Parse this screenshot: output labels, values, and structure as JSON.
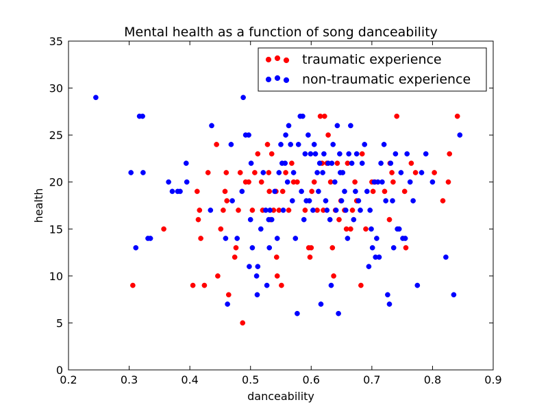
{
  "chart_data": {
    "type": "scatter",
    "title": "Mental health as a function of song danceability",
    "xlabel": "danceability",
    "ylabel": "health",
    "xlim": [
      0.2,
      0.9
    ],
    "ylim": [
      0,
      35
    ],
    "xticks": [
      "0.2",
      "0.3",
      "0.4",
      "0.5",
      "0.6",
      "0.7",
      "0.8",
      "0.9"
    ],
    "yticks": [
      "0",
      "5",
      "10",
      "15",
      "20",
      "25",
      "30",
      "35"
    ],
    "grid": false,
    "legend_position": "top-right",
    "series": [
      {
        "name": "traumatic experience",
        "color": "#ff0000",
        "points": [
          [
            0.306,
            9
          ],
          [
            0.357,
            15
          ],
          [
            0.405,
            9
          ],
          [
            0.412,
            19
          ],
          [
            0.414,
            16
          ],
          [
            0.416,
            17
          ],
          [
            0.418,
            14
          ],
          [
            0.424,
            9
          ],
          [
            0.43,
            21
          ],
          [
            0.444,
            24
          ],
          [
            0.446,
            10
          ],
          [
            0.451,
            15
          ],
          [
            0.455,
            17
          ],
          [
            0.458,
            19
          ],
          [
            0.46,
            21
          ],
          [
            0.461,
            18
          ],
          [
            0.464,
            8
          ],
          [
            0.474,
            12
          ],
          [
            0.476,
            13
          ],
          [
            0.48,
            17
          ],
          [
            0.483,
            21
          ],
          [
            0.487,
            5
          ],
          [
            0.492,
            20
          ],
          [
            0.497,
            20
          ],
          [
            0.503,
            17
          ],
          [
            0.507,
            21
          ],
          [
            0.512,
            23
          ],
          [
            0.518,
            20
          ],
          [
            0.52,
            17
          ],
          [
            0.528,
            24
          ],
          [
            0.53,
            21
          ],
          [
            0.531,
            19
          ],
          [
            0.533,
            16
          ],
          [
            0.535,
            23
          ],
          [
            0.538,
            17
          ],
          [
            0.542,
            19
          ],
          [
            0.543,
            12
          ],
          [
            0.544,
            10
          ],
          [
            0.547,
            17
          ],
          [
            0.551,
            9
          ],
          [
            0.553,
            19
          ],
          [
            0.558,
            21
          ],
          [
            0.563,
            17
          ],
          [
            0.568,
            22
          ],
          [
            0.571,
            20
          ],
          [
            0.577,
            20
          ],
          [
            0.59,
            17
          ],
          [
            0.596,
            13
          ],
          [
            0.598,
            12
          ],
          [
            0.6,
            13
          ],
          [
            0.601,
            19
          ],
          [
            0.605,
            20
          ],
          [
            0.61,
            17
          ],
          [
            0.615,
            27
          ],
          [
            0.618,
            22
          ],
          [
            0.62,
            17
          ],
          [
            0.622,
            27
          ],
          [
            0.626,
            22
          ],
          [
            0.628,
            25
          ],
          [
            0.632,
            20
          ],
          [
            0.635,
            13
          ],
          [
            0.637,
            10
          ],
          [
            0.64,
            17
          ],
          [
            0.643,
            22
          ],
          [
            0.646,
            16
          ],
          [
            0.649,
            18
          ],
          [
            0.655,
            17
          ],
          [
            0.658,
            15
          ],
          [
            0.66,
            22
          ],
          [
            0.665,
            15
          ],
          [
            0.668,
            17
          ],
          [
            0.672,
            20
          ],
          [
            0.675,
            18
          ],
          [
            0.682,
            9
          ],
          [
            0.684,
            23
          ],
          [
            0.69,
            15
          ],
          [
            0.7,
            20
          ],
          [
            0.702,
            19
          ],
          [
            0.705,
            20
          ],
          [
            0.721,
            19
          ],
          [
            0.729,
            16
          ],
          [
            0.73,
            22
          ],
          [
            0.733,
            21
          ],
          [
            0.735,
            20
          ],
          [
            0.741,
            27
          ],
          [
            0.754,
            19
          ],
          [
            0.756,
            13
          ],
          [
            0.765,
            22
          ],
          [
            0.772,
            21
          ],
          [
            0.803,
            21
          ],
          [
            0.817,
            18
          ],
          [
            0.826,
            20
          ],
          [
            0.828,
            23
          ],
          [
            0.841,
            27
          ]
        ]
      },
      {
        "name": "non-traumatic experience",
        "color": "#0000ff",
        "points": [
          [
            0.245,
            29
          ],
          [
            0.303,
            21
          ],
          [
            0.311,
            13
          ],
          [
            0.317,
            27
          ],
          [
            0.322,
            27
          ],
          [
            0.323,
            21
          ],
          [
            0.331,
            14
          ],
          [
            0.335,
            14
          ],
          [
            0.365,
            20
          ],
          [
            0.371,
            19
          ],
          [
            0.38,
            19
          ],
          [
            0.384,
            19
          ],
          [
            0.394,
            22
          ],
          [
            0.395,
            20
          ],
          [
            0.434,
            17
          ],
          [
            0.436,
            26
          ],
          [
            0.459,
            14
          ],
          [
            0.462,
            7
          ],
          [
            0.468,
            24
          ],
          [
            0.47,
            18
          ],
          [
            0.478,
            14
          ],
          [
            0.486,
            19
          ],
          [
            0.488,
            29
          ],
          [
            0.492,
            25
          ],
          [
            0.497,
            25
          ],
          [
            0.498,
            11
          ],
          [
            0.5,
            16
          ],
          [
            0.501,
            22
          ],
          [
            0.503,
            13
          ],
          [
            0.51,
            10
          ],
          [
            0.511,
            8
          ],
          [
            0.512,
            11
          ],
          [
            0.517,
            15
          ],
          [
            0.521,
            21
          ],
          [
            0.525,
            17
          ],
          [
            0.527,
            9
          ],
          [
            0.53,
            16
          ],
          [
            0.531,
            13
          ],
          [
            0.532,
            17
          ],
          [
            0.535,
            16
          ],
          [
            0.54,
            19
          ],
          [
            0.544,
            14
          ],
          [
            0.547,
            21
          ],
          [
            0.55,
            24
          ],
          [
            0.552,
            22
          ],
          [
            0.554,
            17
          ],
          [
            0.557,
            22
          ],
          [
            0.558,
            25
          ],
          [
            0.561,
            20
          ],
          [
            0.563,
            26
          ],
          [
            0.566,
            24
          ],
          [
            0.569,
            18
          ],
          [
            0.571,
            21
          ],
          [
            0.574,
            14
          ],
          [
            0.577,
            6
          ],
          [
            0.579,
            24
          ],
          [
            0.582,
            27
          ],
          [
            0.584,
            19
          ],
          [
            0.586,
            27
          ],
          [
            0.588,
            16
          ],
          [
            0.59,
            23
          ],
          [
            0.592,
            18
          ],
          [
            0.595,
            25
          ],
          [
            0.597,
            18
          ],
          [
            0.599,
            23
          ],
          [
            0.603,
            17
          ],
          [
            0.605,
            24
          ],
          [
            0.607,
            23
          ],
          [
            0.61,
            21
          ],
          [
            0.612,
            19
          ],
          [
            0.614,
            22
          ],
          [
            0.616,
            7
          ],
          [
            0.619,
            21
          ],
          [
            0.621,
            23
          ],
          [
            0.624,
            18
          ],
          [
            0.626,
            17
          ],
          [
            0.628,
            22
          ],
          [
            0.631,
            16
          ],
          [
            0.633,
            9
          ],
          [
            0.634,
            22
          ],
          [
            0.636,
            24
          ],
          [
            0.639,
            20
          ],
          [
            0.641,
            17
          ],
          [
            0.643,
            26
          ],
          [
            0.645,
            6
          ],
          [
            0.647,
            23
          ],
          [
            0.648,
            21
          ],
          [
            0.65,
            18
          ],
          [
            0.652,
            21
          ],
          [
            0.655,
            19
          ],
          [
            0.657,
            17
          ],
          [
            0.66,
            14
          ],
          [
            0.662,
            23
          ],
          [
            0.665,
            26
          ],
          [
            0.667,
            22
          ],
          [
            0.67,
            16
          ],
          [
            0.673,
            19
          ],
          [
            0.675,
            23
          ],
          [
            0.678,
            18
          ],
          [
            0.681,
            17
          ],
          [
            0.684,
            22
          ],
          [
            0.688,
            24
          ],
          [
            0.692,
            19
          ],
          [
            0.695,
            11
          ],
          [
            0.697,
            17
          ],
          [
            0.699,
            15
          ],
          [
            0.701,
            13
          ],
          [
            0.704,
            20
          ],
          [
            0.706,
            12
          ],
          [
            0.708,
            14
          ],
          [
            0.71,
            20
          ],
          [
            0.712,
            12
          ],
          [
            0.715,
            22
          ],
          [
            0.717,
            20
          ],
          [
            0.72,
            24
          ],
          [
            0.723,
            18
          ],
          [
            0.726,
            8
          ],
          [
            0.729,
            7
          ],
          [
            0.731,
            22
          ],
          [
            0.734,
            18
          ],
          [
            0.736,
            13
          ],
          [
            0.739,
            23
          ],
          [
            0.742,
            15
          ],
          [
            0.745,
            15
          ],
          [
            0.748,
            21
          ],
          [
            0.751,
            14
          ],
          [
            0.755,
            14
          ],
          [
            0.758,
            23
          ],
          [
            0.763,
            20
          ],
          [
            0.768,
            18
          ],
          [
            0.775,
            9
          ],
          [
            0.782,
            21
          ],
          [
            0.789,
            23
          ],
          [
            0.8,
            20
          ],
          [
            0.822,
            12
          ],
          [
            0.835,
            8
          ],
          [
            0.845,
            25
          ]
        ]
      }
    ]
  }
}
